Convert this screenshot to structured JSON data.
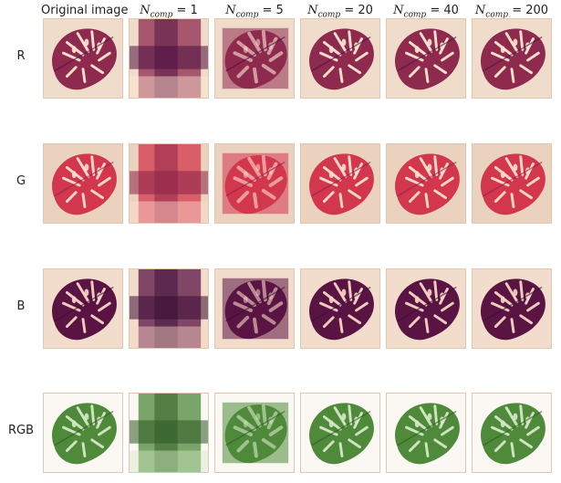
{
  "columns": [
    {
      "type": "plain",
      "label": "Original image"
    },
    {
      "type": "ncomp",
      "sym": "N",
      "sub": "comp",
      "eq": " = ",
      "val": "1"
    },
    {
      "type": "ncomp",
      "sym": "N",
      "sub": "comp",
      "eq": " = ",
      "val": "5"
    },
    {
      "type": "ncomp",
      "sym": "N",
      "sub": "comp",
      "eq": " = ",
      "val": "20"
    },
    {
      "type": "ncomp",
      "sym": "N",
      "sub": "comp",
      "eq": " = ",
      "val": "40"
    },
    {
      "type": "ncomp",
      "sym": "N",
      "sub": "comp",
      "eq": " = ",
      "val": "200"
    }
  ],
  "rows": [
    {
      "label": "R",
      "bg": "#f0dccb",
      "leaf": "#8e2a4e",
      "light": "#ffe8d2",
      "dark": "#4a1040"
    },
    {
      "label": "G",
      "bg": "#ebd2bf",
      "leaf": "#d2374e",
      "light": "#ffe0cf",
      "dark": "#8b2045"
    },
    {
      "label": "B",
      "bg": "#f2dccb",
      "leaf": "#5a1444",
      "light": "#f9d6c4",
      "dark": "#3a0c35"
    },
    {
      "label": "RGB",
      "bg": "#fbf8f4",
      "leaf": "#4f8a3a",
      "light": "#d6e8c8",
      "dark": "#2c5a22"
    }
  ]
}
